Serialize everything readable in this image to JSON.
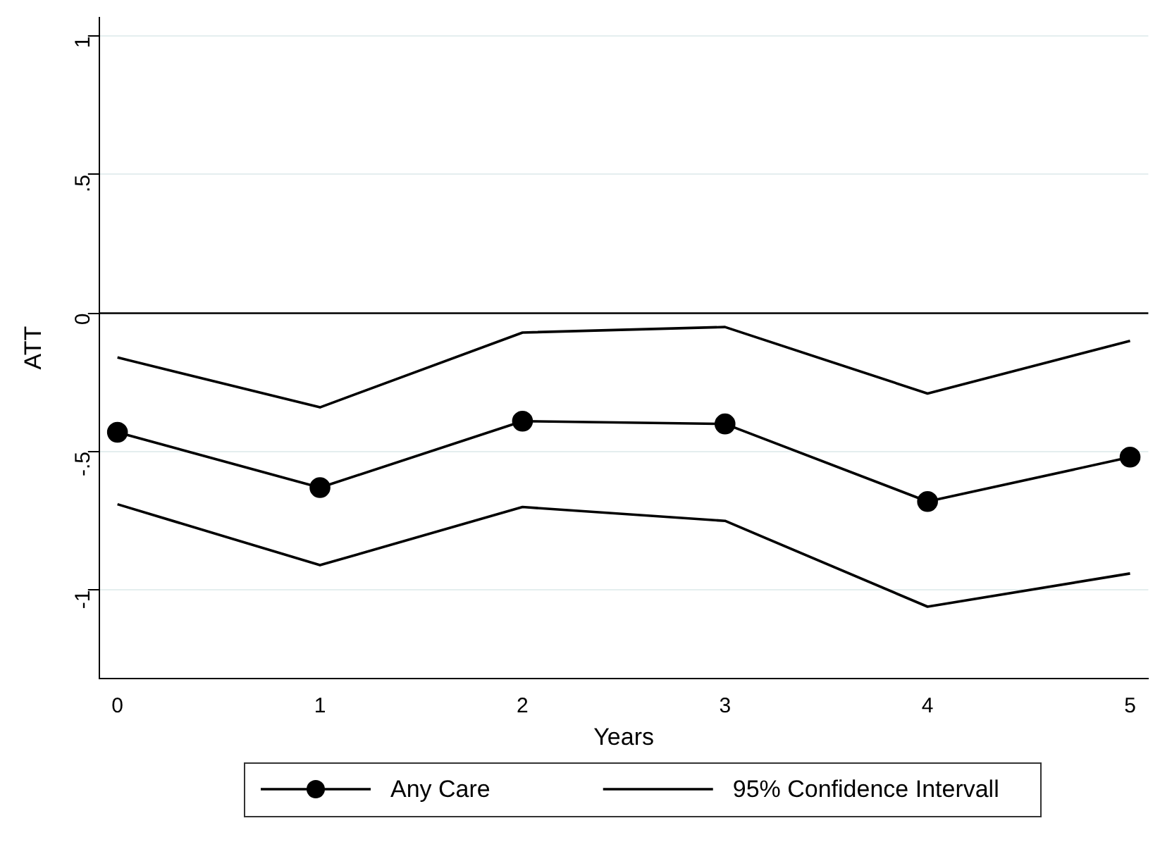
{
  "chart_data": {
    "type": "line",
    "xlabel": "Years",
    "ylabel": "ATT",
    "x": [
      0,
      1,
      2,
      3,
      4,
      5
    ],
    "series": [
      {
        "name": "Any Care",
        "color": "#000000",
        "marker": "circle",
        "values": [
          -0.43,
          -0.63,
          -0.39,
          -0.4,
          -0.68,
          -0.52
        ]
      },
      {
        "name": "95% Confidence Intervall",
        "color": "#000000",
        "marker": "none",
        "values": [
          -0.16,
          -0.34,
          -0.07,
          -0.05,
          -0.29,
          -0.1
        ]
      },
      {
        "color": "#000000",
        "marker": "none",
        "values": [
          -0.69,
          -0.91,
          -0.7,
          -0.75,
          -1.06,
          -0.94
        ]
      }
    ],
    "xlim": [
      -0.09,
      5.09
    ],
    "xticks": [
      0,
      1,
      2,
      3,
      4,
      5
    ],
    "ylim": [
      -1.32,
      1.07
    ],
    "yticks": [
      -1,
      {
        "value": -0.5,
        "label": "-.5"
      },
      0,
      {
        "value": 0.5,
        "label": ".5"
      },
      1
    ],
    "ref_lines": [
      {
        "axis": "y",
        "value": 0,
        "color": "#000000"
      }
    ],
    "grid": "y",
    "legend": "bottom"
  }
}
